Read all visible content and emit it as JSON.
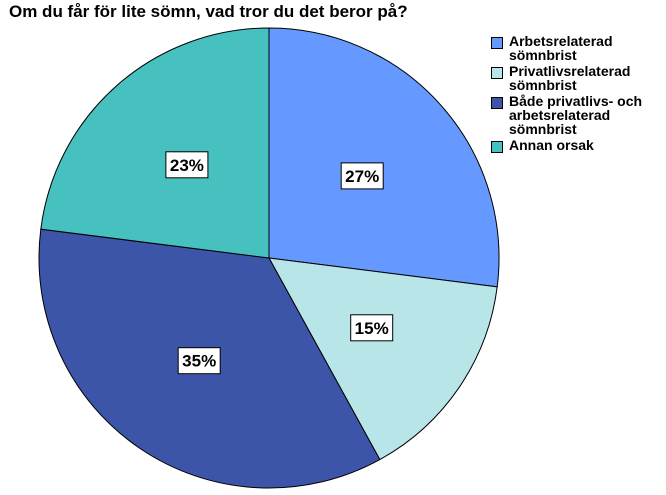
{
  "chart_data": {
    "type": "pie",
    "title": "Om du får för lite sömn, vad tror du det beror på?",
    "categories": [
      "Arbetsrelaterad sömnbrist",
      "Privatlivsrelaterad sömnbrist",
      "Både privatlivs- och arbetsrelaterad sömnbrist",
      "Annan orsak"
    ],
    "values": [
      27,
      15,
      35,
      23
    ],
    "data_labels": [
      "27%",
      "15%",
      "35%",
      "23%"
    ],
    "colors": [
      "#6699ff",
      "#b8e6e8",
      "#3d55a8",
      "#47c0c0"
    ],
    "legend_placement": "right",
    "start_angle": "top, clockwise"
  },
  "legend": {
    "items": [
      {
        "label": "Arbetsrelaterad\nsömnbrist",
        "color": "#6699ff"
      },
      {
        "label": "Privatlivsrelaterad\nsömnbrist",
        "color": "#b8e6e8"
      },
      {
        "label": "Både privatlivs- och\narbetsrelaterad\nsömnbrist",
        "color": "#3d55a8"
      },
      {
        "label": "Annan orsak",
        "color": "#47c0c0"
      }
    ]
  }
}
